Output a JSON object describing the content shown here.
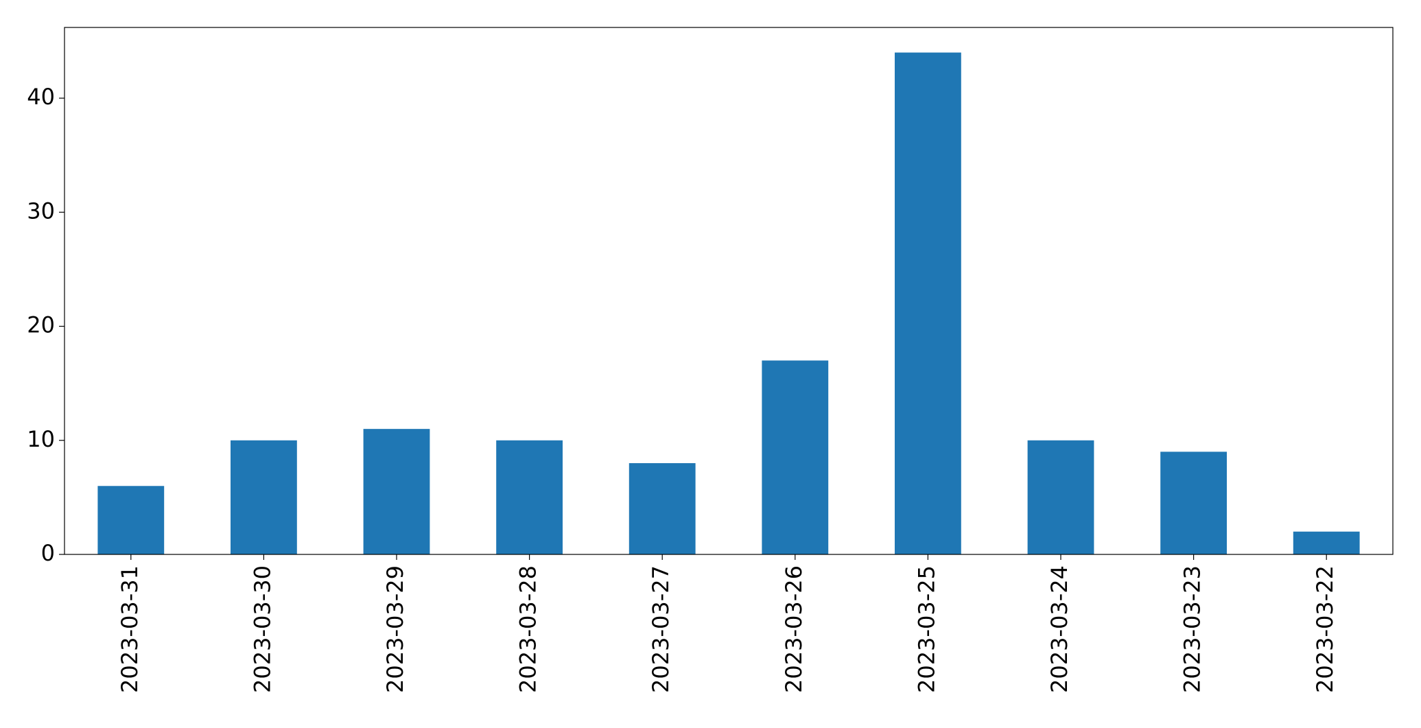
{
  "chart_data": {
    "type": "bar",
    "categories": [
      "2023-03-31",
      "2023-03-30",
      "2023-03-29",
      "2023-03-28",
      "2023-03-27",
      "2023-03-26",
      "2023-03-25",
      "2023-03-24",
      "2023-03-23",
      "2023-03-22"
    ],
    "values": [
      6,
      10,
      11,
      10,
      8,
      17,
      44,
      10,
      9,
      2
    ],
    "color": "#1f77b4",
    "ylim": [
      0,
      46.2
    ],
    "yticks": [
      0,
      10,
      20,
      30,
      40
    ],
    "grid": false
  }
}
